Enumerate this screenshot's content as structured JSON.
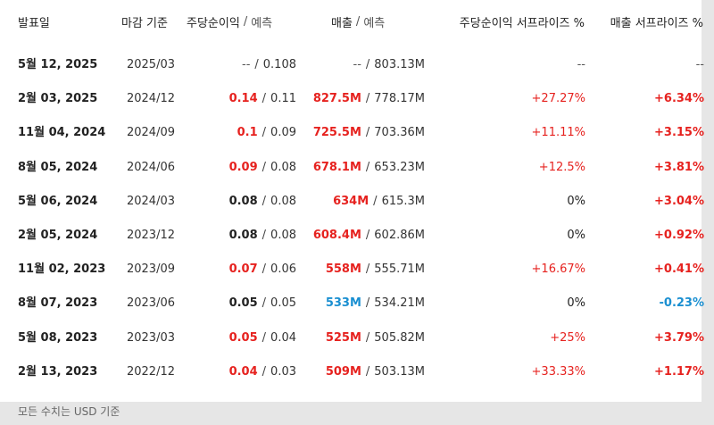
{
  "headers": {
    "date": "발표일",
    "period": "마감 기준",
    "eps": "주당순이익",
    "eps_forecast": "예측",
    "revenue": "매출",
    "revenue_forecast": "예측",
    "eps_surprise": "주당순이익 서프라이즈 %",
    "revenue_surprise": "매출 서프라이즈 %",
    "separator": "/"
  },
  "rows": [
    {
      "date": "5월 12, 2025",
      "period": "2025/03",
      "eps": "--",
      "eps_forecast": "0.108",
      "revenue": "--",
      "revenue_forecast": "803.13M",
      "eps_surprise": "--",
      "revenue_surprise": "--"
    },
    {
      "date": "2월 03, 2025",
      "period": "2024/12",
      "eps": "0.14",
      "eps_forecast": "0.11",
      "revenue": "827.5M",
      "revenue_forecast": "778.17M",
      "eps_surprise": "+27.27%",
      "revenue_surprise": "+6.34%"
    },
    {
      "date": "11월 04, 2024",
      "period": "2024/09",
      "eps": "0.1",
      "eps_forecast": "0.09",
      "revenue": "725.5M",
      "revenue_forecast": "703.36M",
      "eps_surprise": "+11.11%",
      "revenue_surprise": "+3.15%"
    },
    {
      "date": "8월 05, 2024",
      "period": "2024/06",
      "eps": "0.09",
      "eps_forecast": "0.08",
      "revenue": "678.1M",
      "revenue_forecast": "653.23M",
      "eps_surprise": "+12.5%",
      "revenue_surprise": "+3.81%"
    },
    {
      "date": "5월 06, 2024",
      "period": "2024/03",
      "eps": "0.08",
      "eps_forecast": "0.08",
      "revenue": "634M",
      "revenue_forecast": "615.3M",
      "eps_surprise": "0%",
      "revenue_surprise": "+3.04%"
    },
    {
      "date": "2월 05, 2024",
      "period": "2023/12",
      "eps": "0.08",
      "eps_forecast": "0.08",
      "revenue": "608.4M",
      "revenue_forecast": "602.86M",
      "eps_surprise": "0%",
      "revenue_surprise": "+0.92%"
    },
    {
      "date": "11월 02, 2023",
      "period": "2023/09",
      "eps": "0.07",
      "eps_forecast": "0.06",
      "revenue": "558M",
      "revenue_forecast": "555.71M",
      "eps_surprise": "+16.67%",
      "revenue_surprise": "+0.41%"
    },
    {
      "date": "8월 07, 2023",
      "period": "2023/06",
      "eps": "0.05",
      "eps_forecast": "0.05",
      "revenue": "533M",
      "revenue_forecast": "534.21M",
      "eps_surprise": "0%",
      "revenue_surprise": "-0.23%"
    },
    {
      "date": "5월 08, 2023",
      "period": "2023/03",
      "eps": "0.05",
      "eps_forecast": "0.04",
      "revenue": "525M",
      "revenue_forecast": "505.82M",
      "eps_surprise": "+25%",
      "revenue_surprise": "+3.79%"
    },
    {
      "date": "2월 13, 2023",
      "period": "2022/12",
      "eps": "0.04",
      "eps_forecast": "0.03",
      "revenue": "509M",
      "revenue_forecast": "503.13M",
      "eps_surprise": "+33.33%",
      "revenue_surprise": "+1.17%"
    }
  ],
  "footnote": "모든 수치는 USD 기준",
  "colors": {
    "positive": "#e6221f",
    "negative": "#1a8fd1",
    "neutral": "#222222",
    "background": "#e6e6e6"
  }
}
